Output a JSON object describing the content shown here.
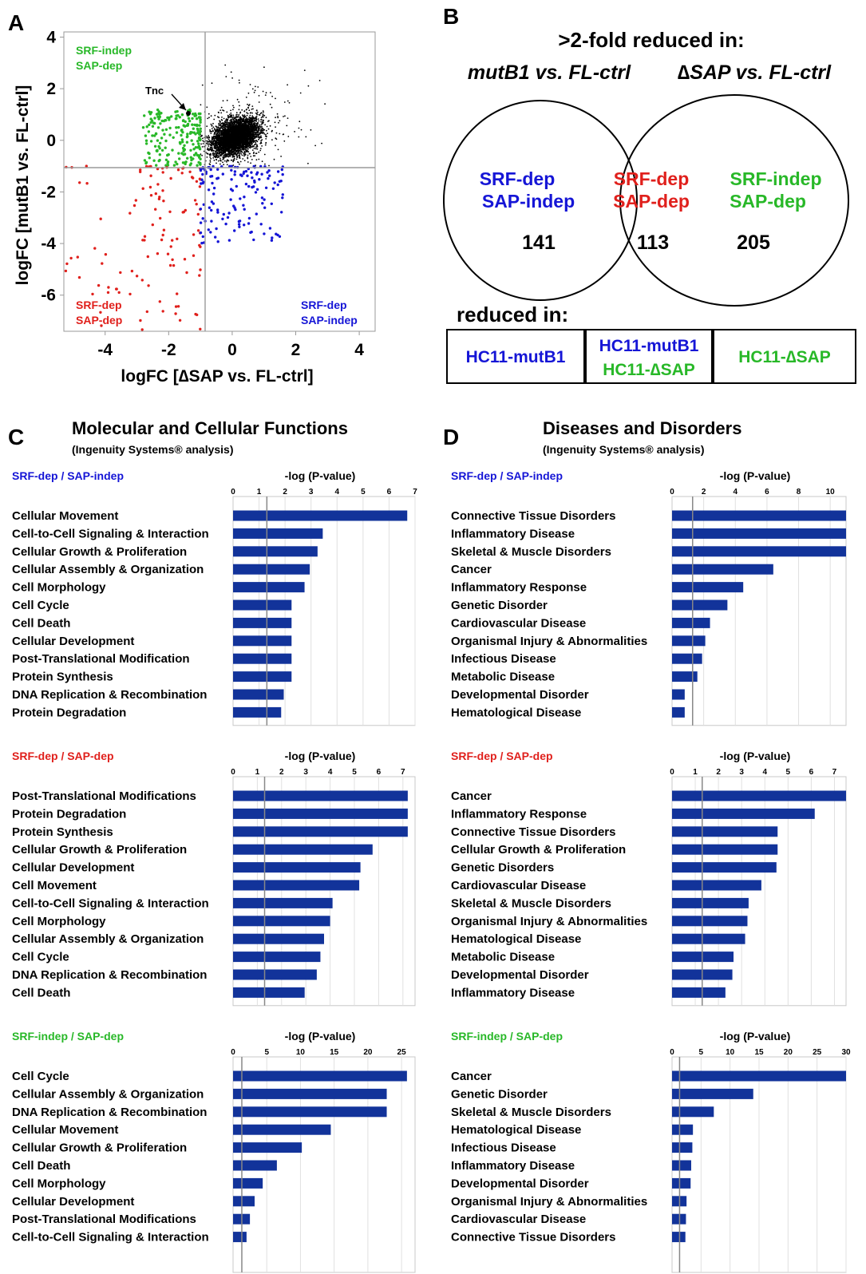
{
  "colors": {
    "blue": "#1515d6",
    "red": "#e0201c",
    "green": "#28b828",
    "bar": "#12339a",
    "gray": "#999999",
    "dark": "#000000",
    "grid": "#d0d0d0"
  },
  "panel_letters": {
    "a": "A",
    "b": "B",
    "c": "C",
    "d": "D"
  },
  "panel_a": {
    "ylabel": "logFC [mutB1 vs. FL-ctrl]",
    "xlabel": "logFC [∆SAP vs. FL-ctrl]",
    "q_tl": [
      "SRF-indep",
      "SAP-dep"
    ],
    "q_bl": [
      "SRF-dep",
      "SAP-dep"
    ],
    "q_br": [
      "SRF-dep",
      "SAP-indep"
    ],
    "annotation": "Tnc"
  },
  "panel_b": {
    "heading": ">2-fold reduced in:",
    "left_label": "mutB1 vs. FL-ctrl",
    "right_label": "∆SAP vs. FL-ctrl",
    "left": {
      "l1": "SRF-dep",
      "l2": "SAP-indep",
      "count": "141"
    },
    "mid": {
      "l1": "SRF-dep",
      "l2": "SAP-dep",
      "count": "113"
    },
    "right": {
      "l1": "SRF-indep",
      "l2": "SAP-dep",
      "count": "205"
    },
    "reduced_heading": "reduced in:",
    "box1": "HC11-mutB1",
    "box2a": "HC11-mutB1",
    "box2b": "HC11-∆SAP",
    "box3": "HC11-∆SAP"
  },
  "panel_c": {
    "title": "Molecular and Cellular Functions",
    "subtitle": "(Ingenuity Systems® analysis)"
  },
  "panel_d": {
    "title": "Diseases and Disorders",
    "subtitle": "(Ingenuity Systems® analysis)"
  },
  "chart_data": [
    {
      "type": "scatter",
      "panel": "A",
      "xlabel": "logFC [∆SAP vs. FL-ctrl]",
      "ylabel": "logFC [mutB1 vs. FL-ctrl]",
      "xlim": [
        -5.3,
        4.5
      ],
      "ylim": [
        -7.4,
        4.2
      ],
      "xticks": [
        -4,
        -2,
        0,
        2,
        4
      ],
      "yticks": [
        4,
        2,
        0,
        -2,
        -4,
        -6
      ],
      "thresholds": {
        "x": -1,
        "y": -1
      },
      "annotation": {
        "text": "Tnc",
        "x": -1.7,
        "y": 1.15
      },
      "series": [
        {
          "color": "#000000",
          "n": 4600,
          "mean": [
            0.1,
            0.15
          ],
          "sd": [
            0.35,
            0.32
          ]
        },
        {
          "color": "#28b828",
          "n": 205,
          "xrange": [
            -3,
            -1
          ],
          "yrange": [
            -1,
            1.2
          ]
        },
        {
          "color": "#e0201c",
          "n": 113,
          "xrange": [
            -5.3,
            -1
          ],
          "yrange": [
            -7.4,
            -1
          ]
        },
        {
          "color": "#1515d6",
          "n": 141,
          "xrange": [
            -1,
            1.6
          ],
          "yrange": [
            -4,
            -1
          ]
        }
      ]
    },
    {
      "type": "bar",
      "panel": "C",
      "group": "SRF-dep / SAP-indep",
      "group_color": "#1515d6",
      "xlabel": "-log (P-value)",
      "xlim": [
        0,
        7
      ],
      "xticks": [
        0,
        1,
        2,
        3,
        4,
        5,
        6,
        7
      ],
      "threshold": 1.3,
      "categories": [
        "Cellular Movement",
        "Cell-to-Cell Signaling & Interaction",
        "Cellular Growth & Proliferation",
        "Cellular Assembly & Organization",
        "Cell Morphology",
        "Cell Cycle",
        "Cell Death",
        "Cellular Development",
        "Post-Translational Modification",
        "Protein Synthesis",
        "DNA Replication & Recombination",
        "Protein Degradation"
      ],
      "values": [
        6.7,
        3.45,
        3.25,
        2.95,
        2.75,
        2.25,
        2.25,
        2.25,
        2.25,
        2.25,
        1.95,
        1.85
      ]
    },
    {
      "type": "bar",
      "panel": "D",
      "group": "SRF-dep / SAP-indep",
      "group_color": "#1515d6",
      "xlabel": "-log (P-value)",
      "xlim": [
        0,
        11
      ],
      "xticks": [
        0,
        2,
        4,
        6,
        8,
        10
      ],
      "threshold": 1.3,
      "categories": [
        "Connective Tissue Disorders",
        "Inflammatory Disease",
        "Skeletal & Muscle Disorders",
        "Cancer",
        "Inflammatory Response",
        "Genetic Disorder",
        "Cardiovascular Disease",
        "Organismal Injury & Abnormalities",
        "Infectious Disease",
        "Metabolic Disease",
        "Developmental Disorder",
        "Hematological Disease"
      ],
      "values": [
        11,
        11,
        11,
        6.4,
        4.5,
        3.5,
        2.4,
        2.1,
        1.9,
        1.6,
        0.8,
        0.8
      ]
    },
    {
      "type": "bar",
      "panel": "C",
      "group": "SRF-dep / SAP-dep",
      "group_color": "#e0201c",
      "xlabel": "-log (P-value)",
      "xlim": [
        0,
        7.5
      ],
      "xticks": [
        0,
        1,
        2,
        3,
        4,
        5,
        6,
        7
      ],
      "threshold": 1.3,
      "categories": [
        "Post-Translational Modifications",
        "Protein Degradation",
        "Protein Synthesis",
        "Cellular Growth & Proliferation",
        "Cellular Development",
        "Cell Movement",
        "Cell-to-Cell Signaling & Interaction",
        "Cell Morphology",
        "Cellular Assembly & Organization",
        "Cell Cycle",
        "DNA Replication & Recombination",
        "Cell Death"
      ],
      "values": [
        7.2,
        7.2,
        7.2,
        5.75,
        5.25,
        5.2,
        4.1,
        4.0,
        3.75,
        3.6,
        3.45,
        2.95
      ]
    },
    {
      "type": "bar",
      "panel": "D",
      "group": "SRF-dep / SAP-dep",
      "group_color": "#e0201c",
      "xlabel": "-log (P-value)",
      "xlim": [
        0,
        7.5
      ],
      "xticks": [
        0,
        1,
        2,
        3,
        4,
        5,
        6,
        7
      ],
      "threshold": 1.3,
      "categories": [
        "Cancer",
        "Inflammatory Response",
        "Connective Tissue Disorders",
        "Cellular Growth & Proliferation",
        "Genetic Disorders",
        "Cardiovascular Disease",
        "Skeletal & Muscle Disorders",
        "Organismal Injury & Abnormalities",
        "Hematological Disease",
        "Metabolic Disease",
        "Developmental Disorder",
        "Inflammatory Disease"
      ],
      "values": [
        7.5,
        6.15,
        4.55,
        4.55,
        4.5,
        3.85,
        3.3,
        3.25,
        3.15,
        2.65,
        2.6,
        2.3
      ]
    },
    {
      "type": "bar",
      "panel": "C",
      "group": "SRF-indep / SAP-dep",
      "group_color": "#28b828",
      "xlabel": "-log (P-value)",
      "xlim": [
        0,
        27
      ],
      "xticks": [
        0,
        5,
        10,
        15,
        20,
        25
      ],
      "threshold": 1.3,
      "categories": [
        "Cell Cycle",
        "Cellular Assembly & Organization",
        "DNA Replication & Recombination",
        "Cellular Movement",
        "Cellular Growth & Proliferation",
        "Cell Death",
        "Cell Morphology",
        "Cellular Development",
        "Post-Translational Modifications",
        "Cell-to-Cell Signaling & Interaction"
      ],
      "values": [
        25.8,
        22.8,
        22.8,
        14.5,
        10.2,
        6.5,
        4.4,
        3.2,
        2.5,
        2.0
      ]
    },
    {
      "type": "bar",
      "panel": "D",
      "group": "SRF-indep / SAP-dep",
      "group_color": "#28b828",
      "xlabel": "-log (P-value)",
      "xlim": [
        0,
        30
      ],
      "xticks": [
        0,
        5,
        10,
        15,
        20,
        25,
        30
      ],
      "threshold": 1.3,
      "categories": [
        "Cancer",
        "Genetic Disorder",
        "Skeletal & Muscle Disorders",
        "Hematological Disease",
        "Infectious Disease",
        "Inflammatory Disease",
        "Developmental Disorder",
        "Organismal Injury & Abnormalities",
        "Cardiovascular Disease",
        "Connective Tissue Disorders"
      ],
      "values": [
        30,
        14,
        7.2,
        3.6,
        3.5,
        3.3,
        3.2,
        2.5,
        2.4,
        2.3
      ]
    }
  ]
}
